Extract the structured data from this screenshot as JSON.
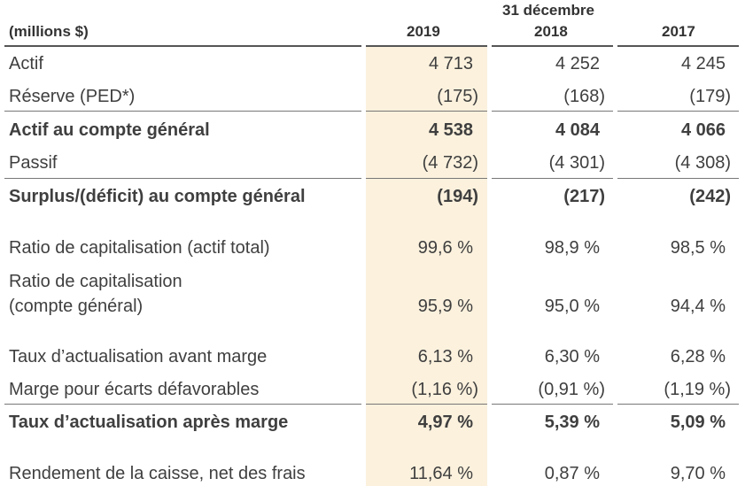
{
  "header": {
    "units": "(millions $)",
    "group": "31 décembre",
    "years": [
      "2019",
      "2018",
      "2017"
    ]
  },
  "rows": [
    {
      "label": "Actif",
      "values": [
        "4 713",
        "4 252",
        "4 245"
      ],
      "bold": false
    },
    {
      "label": "Réserve (PED*)",
      "values": [
        "(175)",
        "(168)",
        "(179)"
      ],
      "bold": false
    },
    {
      "label": "Actif au compte général",
      "values": [
        "4 538",
        "4 084",
        "4 066"
      ],
      "bold": true
    },
    {
      "label": "Passif",
      "values": [
        "(4 732)",
        "(4 301)",
        "(4 308)"
      ],
      "bold": false
    },
    {
      "label": "Surplus/(déficit) au compte général",
      "values": [
        "(194)",
        "(217)",
        "(242)"
      ],
      "bold": true
    },
    {
      "label": "Ratio de capitalisation (actif total)",
      "values": [
        "99,6 %",
        "98,9 %",
        "98,5 %"
      ],
      "bold": false
    },
    {
      "label_lines": [
        "Ratio de capitalisation",
        "(compte général)"
      ],
      "values": [
        "95,9 %",
        "95,0 %",
        "94,4 %"
      ],
      "bold": false
    },
    {
      "label": "Taux d’actualisation avant marge",
      "values": [
        "6,13 %",
        "6,30 %",
        "6,28 %"
      ],
      "bold": false
    },
    {
      "label": "Marge pour écarts défavorables",
      "values": [
        "(1,16 %)",
        "(0,91 %)",
        "(1,19 %)"
      ],
      "bold": false
    },
    {
      "label": "Taux d’actualisation après marge",
      "values": [
        "4,97 %",
        "5,39 %",
        "5,09 %"
      ],
      "bold": true
    },
    {
      "label": "Rendement de la caisse, net des frais",
      "values": [
        "11,64 %",
        "0,87 %",
        "9,70 %"
      ],
      "bold": false
    }
  ],
  "colors": {
    "highlight_column": "#fbf1dd",
    "text": "#3f3f3f"
  }
}
